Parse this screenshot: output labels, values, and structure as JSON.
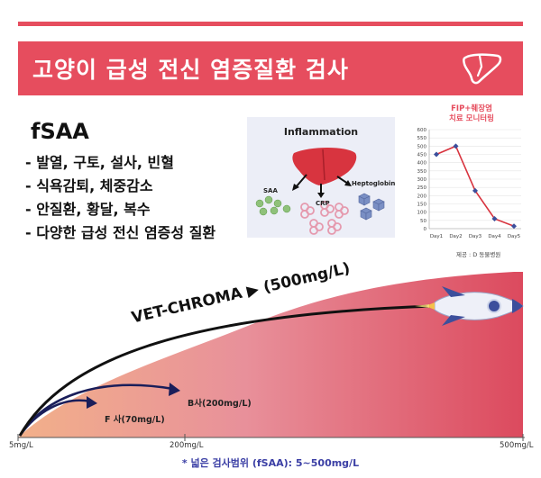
{
  "header": {
    "title": "고양이 급성 전신 염증질환 검사",
    "icon": "liver-icon",
    "accent_color": "#e64d5e"
  },
  "intro": {
    "title": "fSAA",
    "symptoms": [
      "- 발열, 구토, 설사, 빈혈",
      "- 식욕감퇴, 체중감소",
      "- 안질환, 황달, 복수",
      "- 다양한 급성 전신 염증성 질환"
    ]
  },
  "inflammation": {
    "title": "Inflammation",
    "labels": {
      "saa": "SAA",
      "crp": "CRP",
      "hapto": "Heptoglobin"
    }
  },
  "monitoring": {
    "title_line1": "FIP+췌장염",
    "title_line2": "치료 모니터링",
    "source": "제공 : D 동물병원",
    "chart_data": {
      "type": "line",
      "categories": [
        "Day1",
        "Day2",
        "Day3",
        "Day4",
        "Day5"
      ],
      "values": [
        450,
        500,
        230,
        60,
        15
      ],
      "yticks": [
        "0",
        "50",
        "100",
        "150",
        "200",
        "250",
        "300",
        "350",
        "400",
        "450",
        "500",
        "550",
        "600"
      ],
      "ylim": [
        0,
        600
      ],
      "line_color": "#d8343f",
      "marker_color": "#3c4f9c"
    }
  },
  "range_graphic": {
    "vet_label": "VET-CHROMA ▶ (500mg/L)",
    "b_label": "B사(200mg/L)",
    "f_label": "F 사(70mg/L)",
    "axis": {
      "min": "5mg/L",
      "mid": "200mg/L",
      "max": "500mg/L"
    },
    "footnote": "* 넓은 검사범위 (fSAA): 5~500mg/L"
  }
}
